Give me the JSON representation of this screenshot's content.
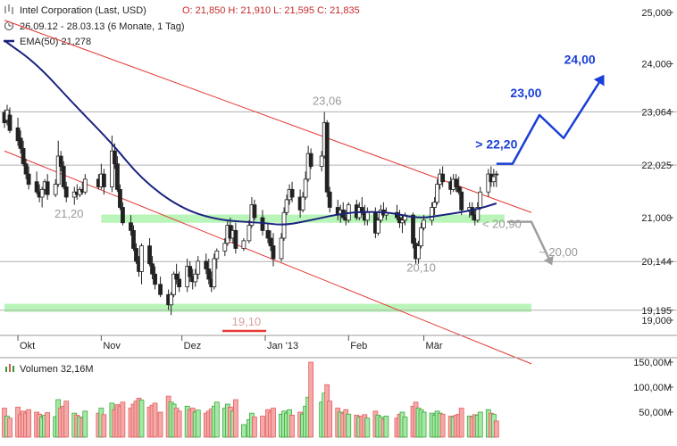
{
  "header": {
    "title": "Intel Corporation (Last, USD)",
    "ohlc": "O: 21,850  H: 21,910  L: 21,595  C: 21,835",
    "period": "26.09.12 - 28.03.13 (6 Monate, 1 Tag)",
    "ema_legend": "EMA(50)  21,278",
    "volume_legend": "Volumen  32,16M"
  },
  "colors": {
    "up": "#2e9e2e",
    "down": "#e05555",
    "ema": "#1a237e",
    "trendline": "#e53935",
    "zone": "#b9f5b9",
    "forecast": "#1a3fd8",
    "forecast_down": "#9e9e9e",
    "vol_up": "#a5e8a5",
    "vol_down": "#f4a8a8"
  },
  "chart_data": {
    "type": "candlestick",
    "x_range": [
      "2012-09-26",
      "2013-03-28"
    ],
    "x_ticks": [
      {
        "label": "Okt",
        "date": "2012-10-01"
      },
      {
        "label": "Nov",
        "date": "2012-11-01"
      },
      {
        "label": "Dez",
        "date": "2012-12-01"
      },
      {
        "label": "Jan '13",
        "date": "2013-01-01"
      },
      {
        "label": "Feb",
        "date": "2013-02-01"
      },
      {
        "label": "Mär",
        "date": "2013-03-01"
      }
    ],
    "y_price_ticks": [
      "25,000",
      "24,000",
      "23,064",
      "22,025",
      "21,000",
      "20,144",
      "19,195",
      "19,000"
    ],
    "y_volume_ticks": [
      "150,00M",
      "100,00M",
      "50,00M"
    ],
    "horizontal_levels": [
      23.064,
      22.025,
      20.144,
      19.195
    ],
    "support_zones": [
      {
        "low": 20.9,
        "high": 21.06,
        "from": "2012-11-01",
        "to": "2013-03-31"
      },
      {
        "low": 19.16,
        "high": 19.32,
        "from": "2012-09-26",
        "to": "2013-04-10"
      }
    ],
    "trendlines": [
      {
        "from": [
          "2012-09-26",
          24.85
        ],
        "to": [
          "2013-04-10",
          21.1
        ]
      },
      {
        "from": [
          "2012-09-26",
          22.3
        ],
        "to": [
          "2013-04-10",
          18.15
        ]
      }
    ],
    "labels": [
      {
        "text": "23,06",
        "date": "2013-01-24",
        "price": 23.2,
        "color": "gray"
      },
      {
        "text": "21,20",
        "date": "2012-10-20",
        "price": 21.0,
        "color": "gray"
      },
      {
        "text": "20,10",
        "date": "2013-02-28",
        "price": 19.95,
        "color": "gray"
      },
      {
        "text": "19,10",
        "date": "2012-12-25",
        "price": 18.9,
        "color": "gray"
      },
      {
        "text": "< 20,90",
        "date": "2013-03-30",
        "price": 20.8,
        "color": "gray"
      },
      {
        "text": "~ 20,00",
        "date": "2013-04-20",
        "price": 20.25,
        "color": "gray"
      },
      {
        "text": "> 22,20",
        "date": "2013-03-28",
        "price": 22.35,
        "color": "blue"
      },
      {
        "text": "23,00",
        "date": "2013-04-08",
        "price": 23.35,
        "color": "blue"
      },
      {
        "text": "24,00",
        "date": "2013-04-28",
        "price": 24.0,
        "color": "blue"
      }
    ],
    "forecast_up": [
      [
        "2013-03-28",
        22.05
      ],
      [
        "2013-04-03",
        22.05
      ],
      [
        "2013-04-13",
        23.0
      ],
      [
        "2013-04-22",
        22.55
      ],
      [
        "2013-05-06",
        23.7
      ]
    ],
    "forecast_down": [
      [
        "2013-04-01",
        20.92
      ],
      [
        "2013-04-10",
        20.92
      ],
      [
        "2013-04-17",
        20.15
      ]
    ],
    "candles": [
      [
        "2012-09-26",
        23.05,
        23.1,
        22.75,
        22.85,
        58
      ],
      [
        "2012-09-27",
        22.9,
        23.2,
        22.8,
        23.1,
        42
      ],
      [
        "2012-09-28",
        23.0,
        23.15,
        22.65,
        22.7,
        38
      ],
      [
        "2012-10-01",
        22.75,
        22.95,
        22.4,
        22.5,
        60
      ],
      [
        "2012-10-02",
        22.55,
        22.7,
        22.25,
        22.35,
        45
      ],
      [
        "2012-10-03",
        22.35,
        22.5,
        22.0,
        22.05,
        52
      ],
      [
        "2012-10-04",
        22.05,
        22.15,
        21.75,
        21.85,
        48
      ],
      [
        "2012-10-05",
        21.85,
        22.0,
        21.55,
        21.65,
        55
      ],
      [
        "2012-10-08",
        21.7,
        21.9,
        21.45,
        21.5,
        50
      ],
      [
        "2012-10-09",
        21.5,
        21.65,
        21.3,
        21.4,
        46
      ],
      [
        "2012-10-10",
        21.4,
        21.6,
        21.2,
        21.55,
        40
      ],
      [
        "2012-10-11",
        21.55,
        21.75,
        21.45,
        21.7,
        44
      ],
      [
        "2012-10-12",
        21.7,
        21.85,
        21.35,
        21.45,
        49
      ],
      [
        "2012-10-15",
        21.45,
        21.75,
        21.4,
        21.65,
        41
      ],
      [
        "2012-10-16",
        21.65,
        22.5,
        21.6,
        22.2,
        75
      ],
      [
        "2012-10-17",
        22.2,
        22.3,
        21.9,
        22.0,
        58
      ],
      [
        "2012-10-18",
        22.0,
        22.1,
        21.55,
        21.6,
        62
      ],
      [
        "2012-10-19",
        21.6,
        21.7,
        21.3,
        21.4,
        72
      ],
      [
        "2012-10-22",
        21.4,
        21.6,
        21.25,
        21.5,
        48
      ],
      [
        "2012-10-23",
        21.5,
        21.65,
        21.35,
        21.45,
        44
      ],
      [
        "2012-10-24",
        21.45,
        21.6,
        21.4,
        21.55,
        40
      ],
      [
        "2012-10-25",
        21.55,
        21.7,
        21.45,
        21.5,
        38
      ],
      [
        "2012-10-26",
        21.5,
        21.85,
        21.45,
        21.75,
        52
      ],
      [
        "2012-10-31",
        21.75,
        21.85,
        21.55,
        21.6,
        48
      ],
      [
        "2012-11-01",
        21.6,
        22.05,
        21.55,
        21.85,
        58
      ],
      [
        "2012-11-02",
        21.85,
        21.95,
        21.45,
        21.6,
        45
      ],
      [
        "2012-11-05",
        21.6,
        22.6,
        21.5,
        22.3,
        68
      ],
      [
        "2012-11-06",
        22.3,
        22.45,
        21.95,
        22.05,
        55
      ],
      [
        "2012-11-07",
        22.05,
        22.2,
        21.5,
        21.55,
        65
      ],
      [
        "2012-11-08",
        21.55,
        21.65,
        21.15,
        21.2,
        62
      ],
      [
        "2012-11-09",
        21.2,
        21.3,
        20.85,
        20.9,
        70
      ],
      [
        "2012-11-12",
        20.9,
        21.05,
        20.65,
        20.75,
        58
      ],
      [
        "2012-11-13",
        20.75,
        20.85,
        20.35,
        20.4,
        66
      ],
      [
        "2012-11-14",
        20.4,
        20.5,
        20.1,
        20.15,
        72
      ],
      [
        "2012-11-15",
        20.15,
        20.25,
        19.85,
        19.95,
        78
      ],
      [
        "2012-11-16",
        19.95,
        20.5,
        19.7,
        20.45,
        74
      ],
      [
        "2012-11-19",
        20.45,
        20.6,
        20.05,
        20.1,
        60
      ],
      [
        "2012-11-20",
        20.1,
        20.25,
        19.8,
        19.9,
        64
      ],
      [
        "2012-11-21",
        19.9,
        20.05,
        19.6,
        19.7,
        68
      ],
      [
        "2012-11-23",
        19.7,
        19.85,
        19.45,
        19.5,
        50
      ],
      [
        "2012-11-26",
        19.5,
        19.6,
        19.2,
        19.3,
        82
      ],
      [
        "2012-11-27",
        19.3,
        19.55,
        19.1,
        19.5,
        70
      ],
      [
        "2012-11-28",
        19.5,
        19.95,
        19.45,
        19.9,
        66
      ],
      [
        "2012-11-29",
        19.9,
        20.1,
        19.7,
        19.8,
        58
      ],
      [
        "2012-11-30",
        19.8,
        19.95,
        19.55,
        19.65,
        52
      ],
      [
        "2012-12-03",
        19.65,
        20.2,
        19.55,
        20.05,
        62
      ],
      [
        "2012-12-04",
        20.05,
        20.15,
        19.75,
        19.85,
        55
      ],
      [
        "2012-12-05",
        19.85,
        20.0,
        19.6,
        19.75,
        58
      ],
      [
        "2012-12-06",
        19.75,
        20.0,
        19.65,
        19.9,
        50
      ],
      [
        "2012-12-07",
        19.9,
        20.25,
        19.8,
        20.15,
        54
      ],
      [
        "2012-12-10",
        20.15,
        20.3,
        19.9,
        20.0,
        48
      ],
      [
        "2012-12-11",
        20.0,
        20.2,
        19.7,
        19.8,
        52
      ],
      [
        "2012-12-12",
        19.8,
        19.95,
        19.55,
        19.65,
        56
      ],
      [
        "2012-12-13",
        19.65,
        20.3,
        19.6,
        20.2,
        62
      ],
      [
        "2012-12-14",
        20.2,
        20.4,
        20.0,
        20.35,
        70
      ],
      [
        "2012-12-17",
        20.35,
        20.6,
        20.25,
        20.5,
        58
      ],
      [
        "2012-12-18",
        20.5,
        20.95,
        20.45,
        20.85,
        66
      ],
      [
        "2012-12-19",
        20.85,
        21.0,
        20.55,
        20.6,
        60
      ],
      [
        "2012-12-20",
        20.6,
        20.85,
        20.5,
        20.75,
        52
      ],
      [
        "2012-12-21",
        20.75,
        20.9,
        20.3,
        20.4,
        75
      ],
      [
        "2012-12-24",
        20.4,
        20.6,
        20.35,
        20.55,
        25
      ],
      [
        "2012-12-26",
        20.55,
        20.95,
        20.5,
        20.85,
        35
      ],
      [
        "2012-12-27",
        20.85,
        21.4,
        20.8,
        21.25,
        48
      ],
      [
        "2012-12-28",
        21.25,
        21.35,
        20.95,
        21.0,
        40
      ],
      [
        "2012-12-31",
        21.0,
        21.15,
        20.65,
        20.75,
        42
      ],
      [
        "2013-01-02",
        20.75,
        20.9,
        20.5,
        20.6,
        55
      ],
      [
        "2013-01-03",
        20.6,
        20.75,
        20.35,
        20.45,
        50
      ],
      [
        "2013-01-04",
        20.45,
        20.7,
        20.05,
        20.2,
        58
      ],
      [
        "2013-01-07",
        20.2,
        20.7,
        20.15,
        20.6,
        46
      ],
      [
        "2013-01-08",
        20.6,
        21.2,
        20.55,
        21.1,
        52
      ],
      [
        "2013-01-09",
        21.1,
        21.45,
        21.05,
        21.35,
        48
      ],
      [
        "2013-01-10",
        21.35,
        21.65,
        21.25,
        21.55,
        55
      ],
      [
        "2013-01-11",
        21.55,
        21.7,
        21.3,
        21.4,
        44
      ],
      [
        "2013-01-14",
        21.4,
        21.55,
        21.0,
        21.15,
        50
      ],
      [
        "2013-01-15",
        21.15,
        21.5,
        21.1,
        21.4,
        46
      ],
      [
        "2013-01-16",
        21.4,
        21.9,
        21.35,
        21.75,
        62
      ],
      [
        "2013-01-17",
        21.75,
        22.4,
        21.7,
        22.25,
        80
      ],
      [
        "2013-01-18",
        22.25,
        22.35,
        21.95,
        22.0,
        150
      ],
      [
        "2013-01-22",
        22.0,
        22.3,
        21.9,
        22.2,
        70
      ],
      [
        "2013-01-23",
        22.2,
        23.06,
        22.15,
        22.85,
        88
      ],
      [
        "2013-01-24",
        22.85,
        22.9,
        21.4,
        21.5,
        105
      ],
      [
        "2013-01-25",
        21.5,
        21.6,
        21.1,
        21.2,
        72
      ],
      [
        "2013-01-28",
        21.2,
        21.35,
        20.95,
        21.05,
        58
      ],
      [
        "2013-01-29",
        21.05,
        21.25,
        20.9,
        21.15,
        50
      ],
      [
        "2013-01-30",
        21.15,
        21.3,
        20.95,
        21.0,
        48
      ],
      [
        "2013-01-31",
        21.0,
        21.15,
        20.85,
        20.95,
        55
      ],
      [
        "2013-02-01",
        20.95,
        21.3,
        20.9,
        21.25,
        46
      ],
      [
        "2013-02-04",
        21.25,
        21.35,
        20.95,
        21.0,
        44
      ],
      [
        "2013-02-05",
        21.0,
        21.3,
        20.95,
        21.2,
        40
      ],
      [
        "2013-02-06",
        21.2,
        21.4,
        21.05,
        21.1,
        42
      ],
      [
        "2013-02-07",
        21.1,
        21.25,
        20.85,
        20.95,
        45
      ],
      [
        "2013-02-08",
        20.95,
        21.2,
        20.85,
        21.1,
        38
      ],
      [
        "2013-02-11",
        21.1,
        21.2,
        20.6,
        20.7,
        52
      ],
      [
        "2013-02-12",
        20.7,
        21.0,
        20.65,
        20.95,
        44
      ],
      [
        "2013-02-13",
        20.95,
        21.25,
        20.9,
        21.15,
        40
      ],
      [
        "2013-02-14",
        21.15,
        21.3,
        21.0,
        21.05,
        36
      ],
      [
        "2013-02-15",
        21.05,
        21.2,
        20.95,
        21.1,
        42
      ],
      [
        "2013-02-19",
        21.1,
        21.25,
        20.95,
        21.0,
        38
      ],
      [
        "2013-02-20",
        21.0,
        21.15,
        20.8,
        20.9,
        46
      ],
      [
        "2013-02-21",
        20.9,
        21.05,
        20.7,
        20.95,
        50
      ],
      [
        "2013-02-22",
        20.95,
        21.1,
        20.85,
        21.05,
        40
      ],
      [
        "2013-02-25",
        21.05,
        21.1,
        20.4,
        20.5,
        62
      ],
      [
        "2013-02-26",
        20.5,
        20.6,
        20.1,
        20.2,
        70
      ],
      [
        "2013-02-27",
        20.2,
        20.55,
        20.1,
        20.45,
        58
      ],
      [
        "2013-02-28",
        20.45,
        20.9,
        20.4,
        20.8,
        55
      ],
      [
        "2013-03-01",
        20.8,
        21.05,
        20.75,
        20.95,
        50
      ],
      [
        "2013-03-04",
        20.95,
        21.3,
        20.85,
        21.2,
        48
      ],
      [
        "2013-03-05",
        21.2,
        21.4,
        21.05,
        21.3,
        44
      ],
      [
        "2013-03-06",
        21.3,
        21.75,
        21.25,
        21.65,
        52
      ],
      [
        "2013-03-07",
        21.65,
        21.95,
        21.55,
        21.85,
        48
      ],
      [
        "2013-03-08",
        21.85,
        22.0,
        21.6,
        21.7,
        46
      ],
      [
        "2013-03-11",
        21.7,
        21.8,
        21.45,
        21.55,
        42
      ],
      [
        "2013-03-12",
        21.55,
        21.85,
        21.5,
        21.75,
        40
      ],
      [
        "2013-03-13",
        21.75,
        21.85,
        21.5,
        21.6,
        44
      ],
      [
        "2013-03-14",
        21.6,
        21.8,
        21.45,
        21.5,
        46
      ],
      [
        "2013-03-15",
        21.5,
        21.6,
        21.05,
        21.15,
        58
      ],
      [
        "2013-03-18",
        21.15,
        21.3,
        21.0,
        21.2,
        42
      ],
      [
        "2013-03-19",
        21.2,
        21.3,
        20.95,
        21.05,
        40
      ],
      [
        "2013-03-20",
        21.05,
        21.15,
        20.85,
        20.95,
        45
      ],
      [
        "2013-03-21",
        20.95,
        21.3,
        20.9,
        21.2,
        44
      ],
      [
        "2013-03-22",
        21.2,
        21.6,
        21.15,
        21.5,
        50
      ],
      [
        "2013-03-25",
        21.5,
        21.95,
        21.4,
        21.85,
        55
      ],
      [
        "2013-03-26",
        21.85,
        22.0,
        21.6,
        21.7,
        48
      ],
      [
        "2013-03-27",
        21.7,
        21.95,
        21.6,
        21.8,
        46
      ],
      [
        "2013-03-28",
        21.85,
        21.91,
        21.595,
        21.835,
        32.16
      ]
    ],
    "ema": [
      [
        "2012-09-26",
        24.45
      ],
      [
        "2012-10-08",
        24.0
      ],
      [
        "2012-10-22",
        23.2
      ],
      [
        "2012-11-05",
        22.45
      ],
      [
        "2012-11-16",
        21.75
      ],
      [
        "2012-11-30",
        21.2
      ],
      [
        "2012-12-14",
        20.95
      ],
      [
        "2012-12-31",
        20.9
      ],
      [
        "2013-01-08",
        20.85
      ],
      [
        "2013-01-18",
        20.95
      ],
      [
        "2013-01-31",
        21.1
      ],
      [
        "2013-02-15",
        21.12
      ],
      [
        "2013-02-27",
        20.98
      ],
      [
        "2013-03-08",
        21.05
      ],
      [
        "2013-03-20",
        21.15
      ],
      [
        "2013-03-28",
        21.278
      ]
    ]
  }
}
